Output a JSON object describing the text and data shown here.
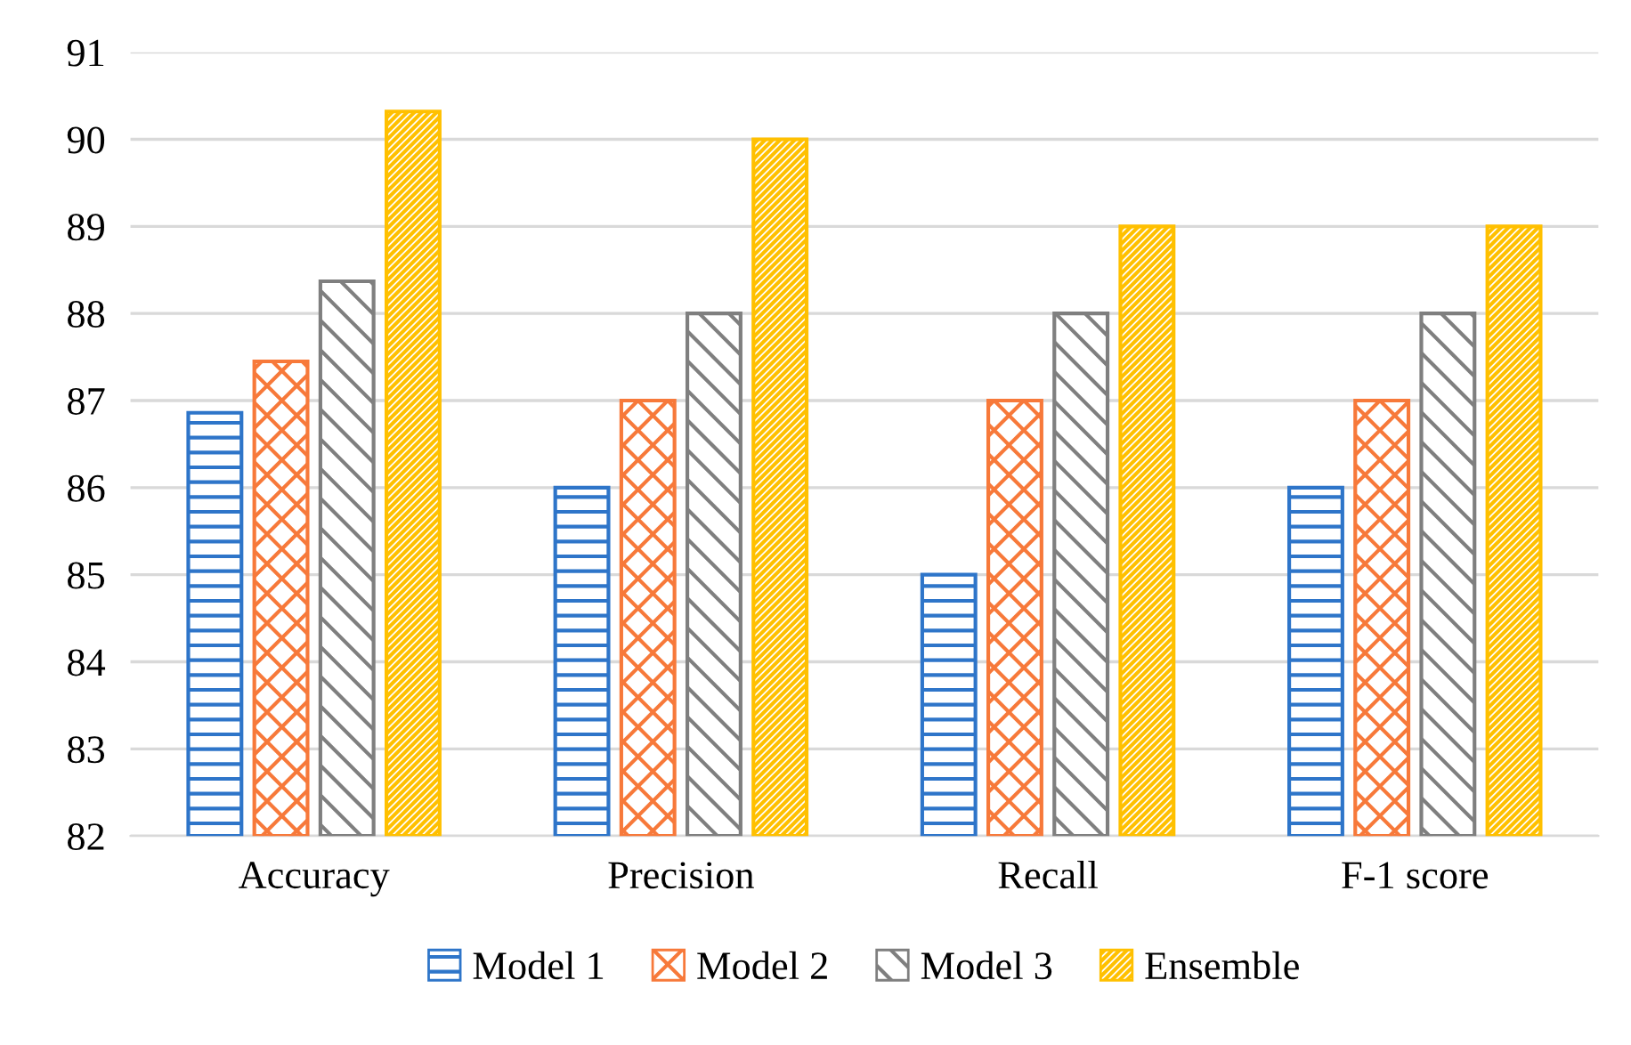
{
  "chart_data": {
    "type": "bar",
    "categories": [
      "Accuracy",
      "Precision",
      "Recall",
      "F-1 score"
    ],
    "series": [
      {
        "name": "Model 1",
        "color": "#2e75c9",
        "values": [
          86.86,
          86,
          85,
          86
        ]
      },
      {
        "name": "Model 2",
        "color": "#f7793a",
        "values": [
          87.45,
          87,
          87,
          87
        ]
      },
      {
        "name": "Model 3",
        "color": "#7f7f7f",
        "values": [
          88.37,
          88,
          88,
          88
        ]
      },
      {
        "name": "Ensemble",
        "color": "#ffc000",
        "values": [
          90.32,
          90,
          89,
          89
        ]
      }
    ],
    "ylim": [
      82,
      91
    ],
    "yticks": [
      82,
      83,
      84,
      85,
      86,
      87,
      88,
      89,
      90,
      91
    ],
    "grid": "y",
    "legend": "bottom"
  }
}
